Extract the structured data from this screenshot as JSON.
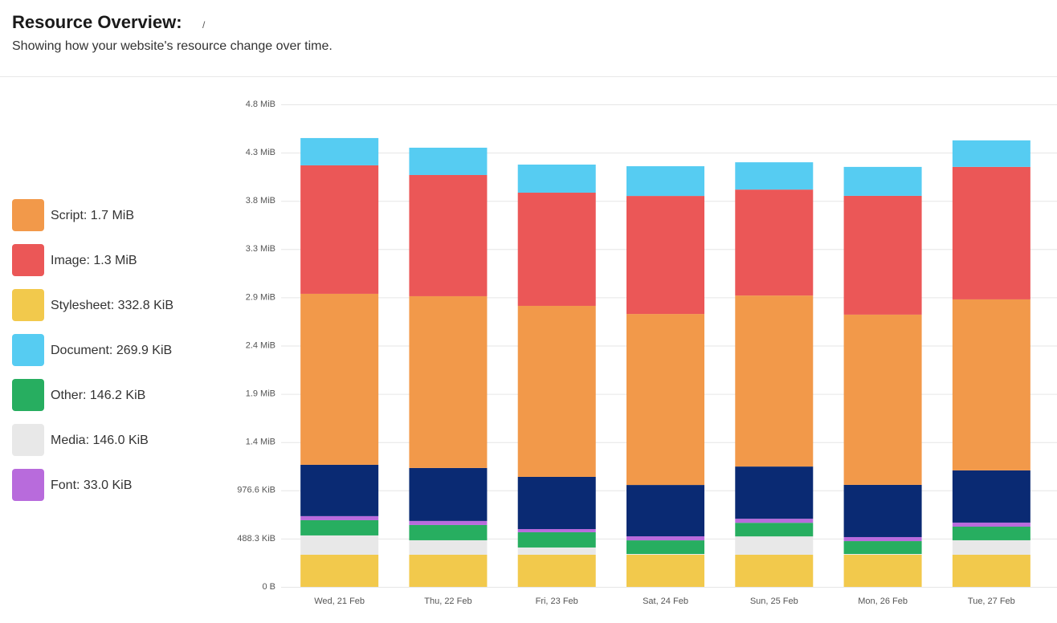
{
  "header": {
    "title": "Resource Overview:",
    "breadcrumb": "/",
    "subtitle": "Showing how your website's resource change over time."
  },
  "chart_data": {
    "type": "stacked-bar",
    "categories": [
      "Wed, 21 Feb",
      "Thu, 22 Feb",
      "Fri, 23 Feb",
      "Sat, 24 Feb",
      "Sun, 25 Feb",
      "Mon, 26 Feb",
      "Tue, 27 Feb"
    ],
    "series": [
      {
        "name": "Stylesheet: 332.8 KiB",
        "color": "#f2c94c",
        "values": [
          333000,
          333000,
          333000,
          333000,
          333000,
          333000,
          333000
        ]
      },
      {
        "name": "Media: 146.0 KiB",
        "color": "#e8e8e8",
        "values": [
          200000,
          150000,
          75000,
          8000,
          190000,
          8000,
          150000
        ]
      },
      {
        "name": "Other: 146.2 KiB",
        "color": "#27ae60",
        "values": [
          158000,
          158000,
          158000,
          141000,
          141000,
          133000,
          141000
        ]
      },
      {
        "name": "Font: 33.0 KiB",
        "color": "#b86bdc",
        "values": [
          42000,
          42000,
          33000,
          42000,
          42000,
          42000,
          42000
        ]
      },
      {
        "color": "#0a2a73",
        "values": [
          532000,
          549000,
          541000,
          532000,
          541000,
          541000,
          541000
        ]
      },
      {
        "name": "Script: 1.7 MiB",
        "color": "#f2994a",
        "values": [
          1772000,
          1780000,
          1772000,
          1772000,
          1772000,
          1764000,
          1772000
        ]
      },
      {
        "name": "Image: 1.3 MiB",
        "color": "#eb5757",
        "values": [
          1331000,
          1256000,
          1173000,
          1223000,
          1098000,
          1231000,
          1373000
        ]
      },
      {
        "name": "Document: 269.9 KiB",
        "color": "#56ccf2",
        "values": [
          283000,
          283000,
          291000,
          308000,
          283000,
          300000,
          275000
        ]
      }
    ],
    "ylim": [
      0,
      5000000
    ],
    "yticks": [
      {
        "value": 0,
        "label": "0 B"
      },
      {
        "value": 500000,
        "label": "488.3 KiB"
      },
      {
        "value": 1000000,
        "label": "976.6 KiB"
      },
      {
        "value": 1500000,
        "label": "1.4 MiB"
      },
      {
        "value": 2000000,
        "label": "1.9 MiB"
      },
      {
        "value": 2500000,
        "label": "2.4 MiB"
      },
      {
        "value": 3000000,
        "label": "2.9 MiB"
      },
      {
        "value": 3500000,
        "label": "3.3 MiB"
      },
      {
        "value": 4000000,
        "label": "3.8 MiB"
      },
      {
        "value": 4500000,
        "label": "4.3 MiB"
      },
      {
        "value": 5000000,
        "label": "4.8 MiB"
      }
    ],
    "grid": true
  }
}
